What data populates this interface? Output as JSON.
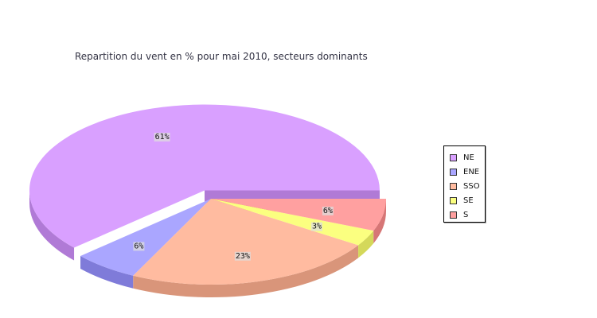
{
  "chart_data": {
    "type": "pie",
    "title": "Repartition du vent en % pour mai 2010, secteurs dominants",
    "slices": [
      {
        "name": "NE",
        "value": 61,
        "label": "61%",
        "color": "#d9a0ff",
        "side": "#b07ad6"
      },
      {
        "name": "ENE",
        "value": 6,
        "label": "6%",
        "color": "#aaa6ff",
        "side": "#7f7bd9"
      },
      {
        "name": "SSO",
        "value": 23,
        "label": "23%",
        "color": "#ffbba0",
        "side": "#d9957a"
      },
      {
        "name": "SE",
        "value": 3,
        "label": "3%",
        "color": "#fbff80",
        "side": "#d4d85a"
      },
      {
        "name": "S",
        "value": 6,
        "label": "6%",
        "color": "#ffa0a0",
        "side": "#d67676"
      }
    ],
    "legend_position": "right"
  }
}
